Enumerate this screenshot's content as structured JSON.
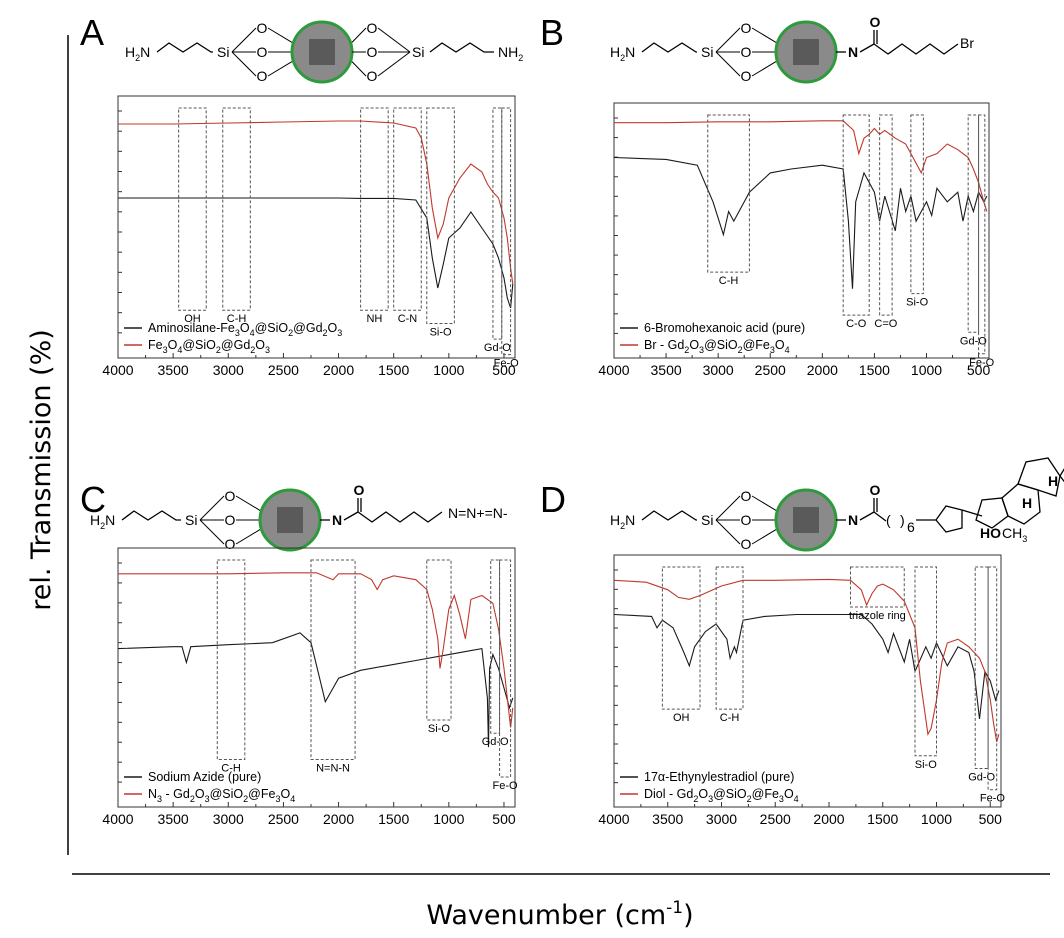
{
  "figure": {
    "y_axis_title": "rel. Transmission (%)",
    "x_axis_title_main": "Wavenumber (cm",
    "x_axis_title_sup": "-1",
    "x_axis_title_end": ")"
  },
  "chart_data": [
    {
      "type": "line",
      "panel": "A",
      "molecule": {
        "left": "H2N",
        "si": "Si",
        "o": "O",
        "right": "NH2"
      },
      "x_ticks": [
        4000,
        3500,
        3000,
        2500,
        2000,
        1500,
        1000,
        500
      ],
      "xlim": [
        4000,
        400
      ],
      "series": [
        {
          "name": "Aminosilane-Fe3O4@SiO2@Gd2O3",
          "color": "#1a1a1a",
          "x": [
            4000,
            3500,
            3000,
            2500,
            2000,
            1800,
            1500,
            1300,
            1200,
            1150,
            1100,
            1050,
            1000,
            900,
            800,
            700,
            600,
            550,
            500,
            470,
            440,
            420
          ],
          "y": [
            0.55,
            0.55,
            0.55,
            0.55,
            0.55,
            0.548,
            0.548,
            0.54,
            0.45,
            0.25,
            0.1,
            0.22,
            0.35,
            0.4,
            0.48,
            0.4,
            0.32,
            0.25,
            0.15,
            0.05,
            0.0,
            0.12
          ]
        },
        {
          "name": "Fe3O4@SiO2@Gd2O3",
          "color": "#c0392b",
          "x": [
            4000,
            3500,
            3000,
            2500,
            2000,
            1800,
            1500,
            1300,
            1250,
            1200,
            1150,
            1100,
            1050,
            1000,
            900,
            800,
            700,
            650,
            600,
            550,
            500,
            470,
            440,
            420
          ],
          "y": [
            0.92,
            0.92,
            0.925,
            0.93,
            0.935,
            0.935,
            0.925,
            0.9,
            0.85,
            0.72,
            0.5,
            0.35,
            0.42,
            0.55,
            0.65,
            0.72,
            0.68,
            0.62,
            0.58,
            0.55,
            0.45,
            0.35,
            0.2,
            0.12
          ]
        }
      ],
      "annotations": [
        {
          "label": "OH",
          "x1": 3450,
          "x2": 3200
        },
        {
          "label": "C-H",
          "x1": 3050,
          "x2": 2800
        },
        {
          "label": "NH",
          "x1": 1800,
          "x2": 1550
        },
        {
          "label": "C-N",
          "x1": 1500,
          "x2": 1250
        },
        {
          "label": "Si-O",
          "x1": 1200,
          "x2": 950
        },
        {
          "label": "Gd-O",
          "x1": 600,
          "x2": 520
        },
        {
          "label": "Fe-O",
          "x1": 520,
          "x2": 440
        }
      ]
    },
    {
      "type": "line",
      "panel": "B",
      "molecule": {
        "left": "H2N",
        "si": "Si",
        "o": "O",
        "n": "N",
        "co": "O",
        "right": "Br"
      },
      "x_ticks": [
        4000,
        3500,
        3000,
        2500,
        2000,
        1500,
        1000,
        500
      ],
      "xlim": [
        4000,
        400
      ],
      "series": [
        {
          "name": "6-Bromohexanoic acid (pure)",
          "color": "#1a1a1a",
          "x": [
            4000,
            3500,
            3200,
            3050,
            2950,
            2900,
            2850,
            2700,
            2500,
            2300,
            2000,
            1800,
            1750,
            1710,
            1680,
            1600,
            1500,
            1450,
            1400,
            1300,
            1250,
            1200,
            1150,
            1100,
            1000,
            950,
            900,
            800,
            700,
            650,
            600,
            550,
            500,
            450,
            420
          ],
          "y": [
            0.78,
            0.77,
            0.74,
            0.55,
            0.38,
            0.5,
            0.45,
            0.6,
            0.7,
            0.72,
            0.74,
            0.72,
            0.45,
            0.1,
            0.55,
            0.7,
            0.6,
            0.45,
            0.58,
            0.4,
            0.62,
            0.5,
            0.58,
            0.45,
            0.55,
            0.48,
            0.62,
            0.55,
            0.6,
            0.45,
            0.58,
            0.5,
            0.6,
            0.55,
            0.58
          ]
        },
        {
          "name": "Br - Gd2O3@SiO2@Fe3O4",
          "color": "#c0392b",
          "x": [
            4000,
            3500,
            3000,
            2500,
            2000,
            1800,
            1700,
            1650,
            1600,
            1550,
            1500,
            1450,
            1400,
            1300,
            1200,
            1100,
            1050,
            1000,
            900,
            800,
            700,
            600,
            550,
            500,
            450,
            420
          ],
          "y": [
            0.96,
            0.96,
            0.965,
            0.965,
            0.97,
            0.97,
            0.92,
            0.8,
            0.88,
            0.9,
            0.93,
            0.9,
            0.92,
            0.88,
            0.85,
            0.75,
            0.7,
            0.78,
            0.8,
            0.85,
            0.82,
            0.78,
            0.72,
            0.65,
            0.55,
            0.5
          ]
        }
      ],
      "annotations": [
        {
          "label": "C-H",
          "x1": 3100,
          "x2": 2700
        },
        {
          "label": "C-O",
          "x1": 1800,
          "x2": 1550
        },
        {
          "label": "C=O",
          "x1": 1450,
          "x2": 1330
        },
        {
          "label": "Si-O",
          "x1": 1150,
          "x2": 1030
        },
        {
          "label": "Gd-O",
          "x1": 600,
          "x2": 500
        },
        {
          "label": "Fe-O",
          "x1": 500,
          "x2": 440
        }
      ]
    },
    {
      "type": "line",
      "panel": "C",
      "molecule": {
        "left": "H2N",
        "si": "Si",
        "o": "O",
        "n": "N",
        "co": "O",
        "right": "N=N+=N-"
      },
      "x_ticks": [
        4000,
        3500,
        3000,
        2500,
        2000,
        1500,
        1000,
        500
      ],
      "xlim": [
        4000,
        400
      ],
      "series": [
        {
          "name": "Sodium Azide (pure)",
          "color": "#1a1a1a",
          "x": [
            4000,
            3500,
            3420,
            3380,
            3340,
            3000,
            2600,
            2350,
            2250,
            2150,
            2120,
            2080,
            2000,
            1800,
            1500,
            1300,
            1000,
            800,
            700,
            650,
            640,
            630,
            600,
            550,
            500,
            450,
            420
          ],
          "y": [
            0.55,
            0.56,
            0.56,
            0.48,
            0.56,
            0.57,
            0.58,
            0.63,
            0.58,
            0.35,
            0.28,
            0.32,
            0.4,
            0.44,
            0.47,
            0.49,
            0.52,
            0.54,
            0.55,
            0.3,
            0.05,
            0.45,
            0.52,
            0.45,
            0.35,
            0.25,
            0.3
          ]
        },
        {
          "name": "N3 - Gd2O3@SiO2@Fe3O4",
          "color": "#c0392b",
          "x": [
            4000,
            3500,
            3000,
            2500,
            2200,
            2050,
            2000,
            1800,
            1700,
            1650,
            1600,
            1500,
            1300,
            1200,
            1150,
            1100,
            1080,
            1050,
            1000,
            950,
            900,
            850,
            800,
            700,
            600,
            550,
            500,
            470,
            440,
            420
          ],
          "y": [
            0.93,
            0.93,
            0.93,
            0.935,
            0.935,
            0.9,
            0.93,
            0.93,
            0.9,
            0.85,
            0.9,
            0.92,
            0.9,
            0.85,
            0.75,
            0.6,
            0.45,
            0.55,
            0.75,
            0.82,
            0.72,
            0.6,
            0.8,
            0.82,
            0.78,
            0.65,
            0.45,
            0.3,
            0.15,
            0.25
          ]
        }
      ],
      "annotations": [
        {
          "label": "C-H",
          "x1": 3100,
          "x2": 2850
        },
        {
          "label": "N=N-N",
          "x1": 2250,
          "x2": 1850
        },
        {
          "label": "Si-O",
          "x1": 1200,
          "x2": 980
        },
        {
          "label": "Gd-O",
          "x1": 620,
          "x2": 540
        },
        {
          "label": "Fe-O",
          "x1": 540,
          "x2": 440
        }
      ]
    },
    {
      "type": "line",
      "panel": "D",
      "molecule": {
        "left": "H2N",
        "si": "Si",
        "o": "O",
        "n": "N",
        "co": "O",
        "sub6": "6",
        "ho": "HO",
        "ch3": "CH3",
        "h": "H",
        "oh": "OH"
      },
      "x_ticks": [
        4000,
        3500,
        3000,
        2500,
        2000,
        1500,
        1000,
        500
      ],
      "xlim": [
        4000,
        400
      ],
      "series": [
        {
          "name": "17α-Ethynylestradiol (pure)",
          "color": "#1a1a1a",
          "x": [
            4000,
            3650,
            3600,
            3550,
            3450,
            3350,
            3300,
            3250,
            3150,
            3050,
            2950,
            2920,
            2880,
            2860,
            2800,
            2600,
            2300,
            2000,
            1700,
            1600,
            1500,
            1450,
            1400,
            1300,
            1250,
            1200,
            1100,
            1050,
            1000,
            900,
            800,
            700,
            650,
            600,
            550,
            500,
            450,
            420
          ],
          "y": [
            0.75,
            0.74,
            0.68,
            0.72,
            0.68,
            0.55,
            0.48,
            0.58,
            0.66,
            0.7,
            0.62,
            0.52,
            0.58,
            0.55,
            0.72,
            0.74,
            0.75,
            0.75,
            0.75,
            0.7,
            0.62,
            0.55,
            0.65,
            0.5,
            0.62,
            0.45,
            0.58,
            0.52,
            0.6,
            0.48,
            0.58,
            0.55,
            0.45,
            0.2,
            0.45,
            0.4,
            0.3,
            0.35
          ]
        },
        {
          "name": "Diol - Gd2O3@SiO2@Fe3O4",
          "color": "#c0392b",
          "x": [
            4000,
            3700,
            3500,
            3400,
            3300,
            3200,
            3000,
            2800,
            2500,
            2000,
            1800,
            1700,
            1650,
            1600,
            1550,
            1500,
            1400,
            1300,
            1200,
            1150,
            1100,
            1080,
            1050,
            1000,
            950,
            900,
            800,
            700,
            600,
            550,
            500,
            470,
            440,
            420
          ],
          "y": [
            0.93,
            0.92,
            0.88,
            0.84,
            0.83,
            0.85,
            0.9,
            0.93,
            0.93,
            0.935,
            0.93,
            0.88,
            0.8,
            0.86,
            0.9,
            0.91,
            0.88,
            0.82,
            0.68,
            0.4,
            0.2,
            0.12,
            0.15,
            0.3,
            0.5,
            0.6,
            0.62,
            0.58,
            0.52,
            0.45,
            0.3,
            0.18,
            0.08,
            0.12
          ]
        }
      ],
      "annotations": [
        {
          "label": "OH",
          "x1": 3550,
          "x2": 3200
        },
        {
          "label": "C-H",
          "x1": 3050,
          "x2": 2800
        },
        {
          "label": "triazole ring",
          "x1": 1800,
          "x2": 1300
        },
        {
          "label": "Si-O",
          "x1": 1200,
          "x2": 1000
        },
        {
          "label": "Gd-O",
          "x1": 640,
          "x2": 520
        },
        {
          "label": "Fe-O",
          "x1": 520,
          "x2": 440
        }
      ]
    }
  ]
}
